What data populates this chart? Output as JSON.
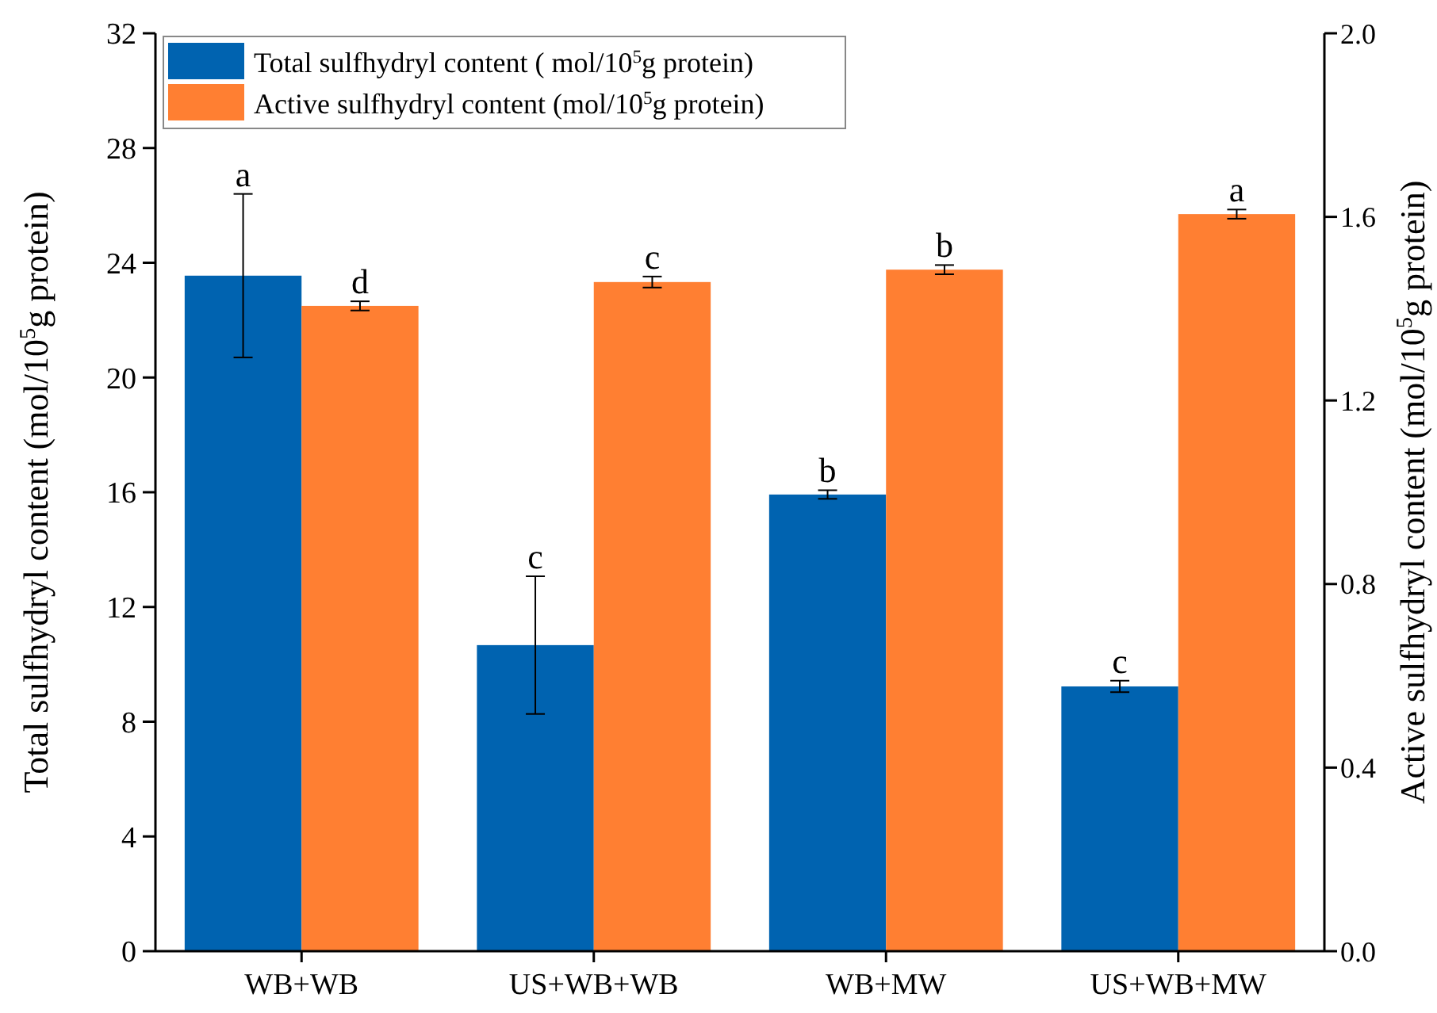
{
  "chart_data": {
    "type": "bar",
    "categories": [
      "WB+WB",
      "US+WB+WB",
      "WB+MW",
      "US+WB+MW"
    ],
    "ylabel": "Total sulfhydryl content (mol/10$^{5}$g protein)",
    "y2label": "Active sulfhydryl content (mol/10$^{5}$g protein)",
    "ylim": [
      0,
      32
    ],
    "yticks": [
      0,
      4,
      8,
      12,
      16,
      20,
      24,
      28,
      32
    ],
    "y2lim": [
      0,
      2
    ],
    "y2ticks": [
      {
        "value": 0,
        "label": "0.0"
      },
      {
        "value": 0.4,
        "label": "0.4"
      },
      {
        "value": 0.8,
        "label": "0.8"
      },
      {
        "value": 1.2,
        "label": "1.2"
      },
      {
        "value": 1.6,
        "label": "1.6"
      },
      {
        "value": 2,
        "label": "2.0"
      }
    ],
    "legend": "top left",
    "grid": false,
    "series": [
      {
        "name": "Total sulfhydryl content ( mol/10$^{5}$g protein)",
        "color": "#0063b0",
        "values": [
          23.55,
          10.67,
          15.92,
          9.23
        ],
        "errors": [
          2.85,
          2.4,
          0.15,
          0.2
        ],
        "value_labels": [
          "a",
          "c",
          "b",
          "c"
        ]
      },
      {
        "name": "Active sulfhydryl content (mol/10$^{5}$g protein)",
        "color": "#ff7f32",
        "axis": "y2",
        "values": [
          1.406,
          1.458,
          1.485,
          1.606
        ],
        "errors": [
          0.01,
          0.012,
          0.01,
          0.01
        ],
        "value_labels": [
          "d",
          "c",
          "b",
          "a"
        ]
      }
    ]
  }
}
